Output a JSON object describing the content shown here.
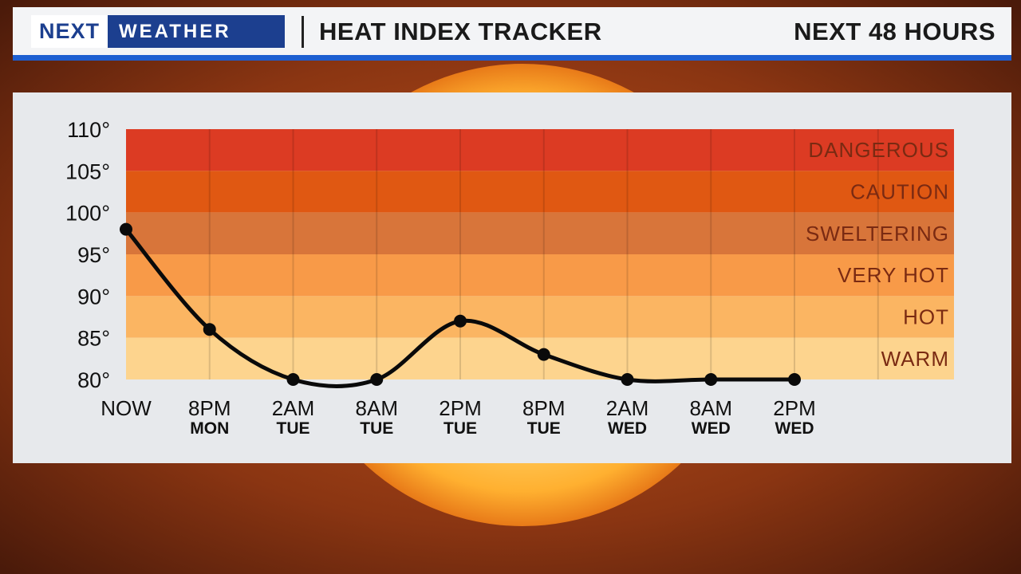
{
  "header": {
    "logo_next": "NEXT",
    "logo_weather": "WEATHER",
    "title": "HEAT INDEX TRACKER",
    "subtitle": "NEXT 48 HOURS"
  },
  "colors": {
    "header_bar": "#1d5fd1",
    "logo_bg": "#1c3f8f"
  },
  "chart_data": {
    "type": "line",
    "title": "HEAT INDEX TRACKER",
    "subtitle": "NEXT 48 HOURS",
    "ylim": [
      80,
      110
    ],
    "y_ticks": [
      "110°",
      "105°",
      "100°",
      "95°",
      "90°",
      "85°",
      "80°"
    ],
    "y_tick_values": [
      110,
      105,
      100,
      95,
      90,
      85,
      80
    ],
    "categories": [
      {
        "top": "NOW",
        "bottom": ""
      },
      {
        "top": "8PM",
        "bottom": "MON"
      },
      {
        "top": "2AM",
        "bottom": "TUE"
      },
      {
        "top": "8AM",
        "bottom": "TUE"
      },
      {
        "top": "2PM",
        "bottom": "TUE"
      },
      {
        "top": "8PM",
        "bottom": "TUE"
      },
      {
        "top": "2AM",
        "bottom": "WED"
      },
      {
        "top": "8AM",
        "bottom": "WED"
      },
      {
        "top": "2PM",
        "bottom": "WED"
      }
    ],
    "values": [
      98,
      86,
      80,
      80,
      87,
      83,
      80,
      80,
      80
    ],
    "bands": [
      {
        "label": "DANGEROUS",
        "from": 105,
        "to": 110,
        "color": "#dc3b23"
      },
      {
        "label": "CAUTION",
        "from": 100,
        "to": 105,
        "color": "#e05812"
      },
      {
        "label": "SWELTERING",
        "from": 95,
        "to": 100,
        "color": "#d8753a"
      },
      {
        "label": "VERY HOT",
        "from": 90,
        "to": 95,
        "color": "#f89a48"
      },
      {
        "label": "HOT",
        "from": 85,
        "to": 90,
        "color": "#fbb562"
      },
      {
        "label": "WARM",
        "from": 80,
        "to": 85,
        "color": "#fdd48e"
      }
    ],
    "grid": true,
    "legend": "none"
  }
}
